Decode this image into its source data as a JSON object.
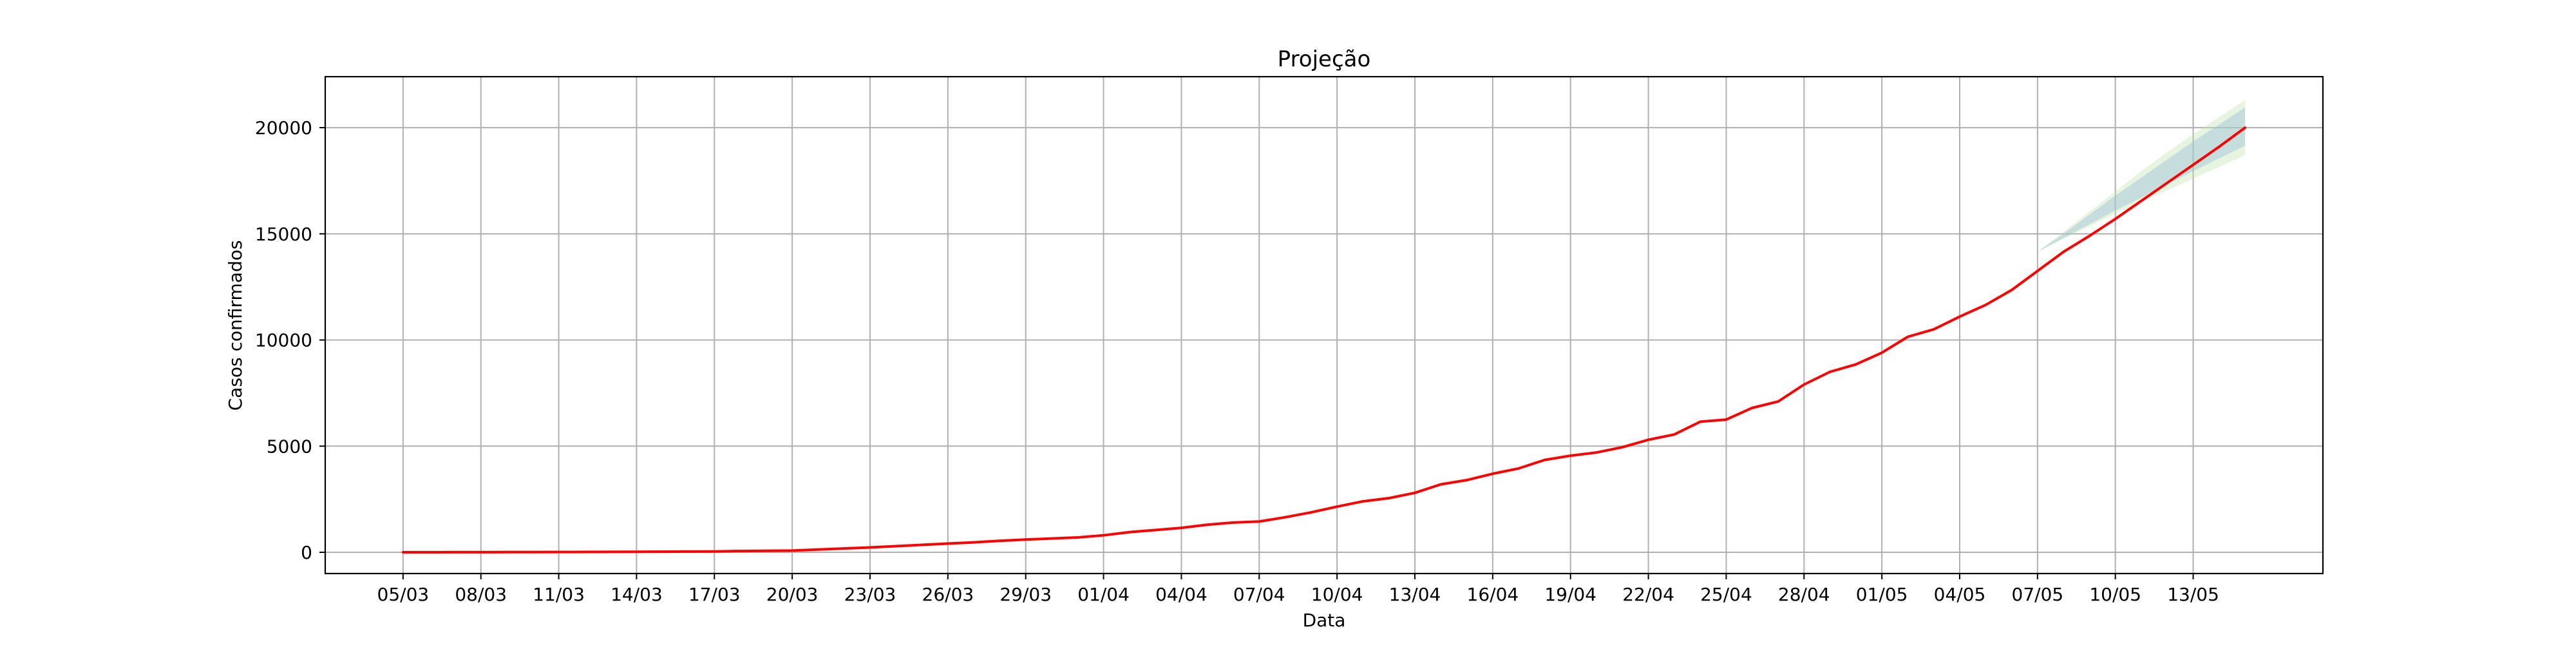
{
  "chart_data": {
    "type": "line",
    "title": "Projeção",
    "xlabel": "Data",
    "ylabel": "Casos confirmados",
    "x_tick_labels": [
      "05/03",
      "08/03",
      "11/03",
      "14/03",
      "17/03",
      "20/03",
      "23/03",
      "26/03",
      "29/03",
      "01/04",
      "04/04",
      "07/04",
      "10/04",
      "13/04",
      "16/04",
      "19/04",
      "22/04",
      "25/04",
      "28/04",
      "01/05",
      "04/05",
      "07/05",
      "10/05",
      "13/05"
    ],
    "y_ticks": [
      0,
      5000,
      10000,
      15000,
      20000
    ],
    "y_tick_labels": [
      "0",
      "5000",
      "10000",
      "15000",
      "20000"
    ],
    "xlim": [
      "2020-03-02",
      "2020-05-18"
    ],
    "ylim": [
      -1000,
      22400
    ],
    "grid": true,
    "series": [
      {
        "color": "#ff0000",
        "x": [
          "2020-03-05",
          "2020-03-06",
          "2020-03-07",
          "2020-03-08",
          "2020-03-09",
          "2020-03-10",
          "2020-03-11",
          "2020-03-12",
          "2020-03-13",
          "2020-03-14",
          "2020-03-15",
          "2020-03-16",
          "2020-03-17",
          "2020-03-18",
          "2020-03-19",
          "2020-03-20",
          "2020-03-21",
          "2020-03-22",
          "2020-03-23",
          "2020-03-24",
          "2020-03-25",
          "2020-03-26",
          "2020-03-27",
          "2020-03-28",
          "2020-03-29",
          "2020-03-30",
          "2020-03-31",
          "2020-04-01",
          "2020-04-02",
          "2020-04-03",
          "2020-04-04",
          "2020-04-05",
          "2020-04-06",
          "2020-04-07",
          "2020-04-08",
          "2020-04-09",
          "2020-04-10",
          "2020-04-11",
          "2020-04-12",
          "2020-04-13",
          "2020-04-14",
          "2020-04-15",
          "2020-04-16",
          "2020-04-17",
          "2020-04-18",
          "2020-04-19",
          "2020-04-20",
          "2020-04-21",
          "2020-04-22",
          "2020-04-23",
          "2020-04-24",
          "2020-04-25",
          "2020-04-26",
          "2020-04-27",
          "2020-04-28",
          "2020-04-29",
          "2020-04-30",
          "2020-05-01",
          "2020-05-02",
          "2020-05-03",
          "2020-05-04",
          "2020-05-05",
          "2020-05-06",
          "2020-05-07",
          "2020-05-08",
          "2020-05-09",
          "2020-05-10",
          "2020-05-11",
          "2020-05-12",
          "2020-05-13",
          "2020-05-14",
          "2020-05-15"
        ],
        "y": [
          2,
          3,
          5,
          6,
          8,
          10,
          13,
          16,
          20,
          25,
          30,
          35,
          40,
          60,
          70,
          80,
          130,
          180,
          230,
          290,
          350,
          410,
          470,
          540,
          600,
          650,
          700,
          800,
          950,
          1050,
          1150,
          1300,
          1400,
          1450,
          1650,
          1880,
          2150,
          2400,
          2550,
          2800,
          3200,
          3400,
          3700,
          3950,
          4350,
          4550,
          4700,
          4950,
          5300,
          5550,
          6150,
          6250,
          6800,
          7100,
          7900,
          8500,
          8850,
          9400,
          10150,
          10500,
          11100,
          11650,
          12350,
          13250,
          14150,
          14900,
          15700,
          16550,
          17400,
          18250,
          19100,
          20000
        ],
        "band_outer": {
          "x": [
            "2020-05-07",
            "2020-05-08",
            "2020-05-09",
            "2020-05-10",
            "2020-05-11",
            "2020-05-12",
            "2020-05-13",
            "2020-05-14",
            "2020-05-15"
          ],
          "lower": [
            14150,
            14750,
            15350,
            15950,
            16500,
            17050,
            17600,
            18150,
            18700
          ],
          "upper": [
            14150,
            15100,
            16050,
            17000,
            17950,
            18850,
            19700,
            20500,
            21300
          ],
          "color": "#b9e3a6"
        },
        "band_inner": {
          "x": [
            "2020-05-07",
            "2020-05-08",
            "2020-05-09",
            "2020-05-10",
            "2020-05-11",
            "2020-05-12",
            "2020-05-13",
            "2020-05-14",
            "2020-05-15"
          ],
          "lower": [
            14150,
            14800,
            15450,
            16100,
            16700,
            17350,
            17950,
            18550,
            19150
          ],
          "upper": [
            14150,
            15000,
            15900,
            16800,
            17650,
            18500,
            19350,
            20150,
            20950
          ],
          "color": "#9cc0d9"
        }
      }
    ]
  }
}
